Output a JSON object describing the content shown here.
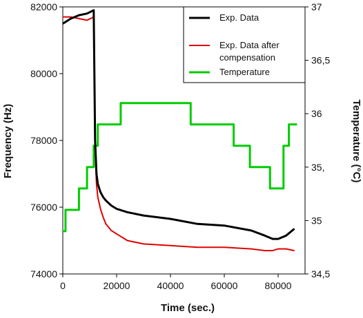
{
  "chart_data": {
    "type": "line",
    "xlabel": "Time (sec.)",
    "ylabel": "Frequency (Hz)",
    "y2label": "Temperature (°C)",
    "xlim": [
      0,
      90000
    ],
    "ylim": [
      74000,
      82000
    ],
    "y2lim": [
      34.5,
      37
    ],
    "x_ticks": [
      "0",
      "20000",
      "40000",
      "60000",
      "80000"
    ],
    "y_ticks": [
      "74000",
      "76000",
      "78000",
      "80000",
      "82000"
    ],
    "y2_ticks": [
      "34,5",
      "35",
      "35,",
      "36",
      "36,5",
      "37"
    ],
    "grid": false,
    "legend_position": "top-right",
    "series": [
      {
        "name": "Exp. Data",
        "axis": "left",
        "color": "#000000",
        "x": [
          0,
          3000,
          6000,
          9000,
          11500,
          12000,
          12500,
          13000,
          14000,
          15000,
          16000,
          18000,
          20000,
          24000,
          30000,
          40000,
          50000,
          60000,
          70000,
          75000,
          78000,
          80000,
          83000,
          86000
        ],
        "y": [
          81500,
          81650,
          81750,
          81800,
          81900,
          78000,
          77000,
          76700,
          76450,
          76300,
          76200,
          76050,
          75950,
          75850,
          75750,
          75650,
          75500,
          75450,
          75300,
          75150,
          75050,
          75050,
          75150,
          75350
        ]
      },
      {
        "name": "Exp. Data after compensation",
        "axis": "left",
        "color": "#e00000",
        "x": [
          0,
          3000,
          6000,
          9000,
          11500,
          12000,
          12500,
          13000,
          14000,
          15000,
          16000,
          18000,
          20000,
          24000,
          30000,
          40000,
          50000,
          60000,
          70000,
          75000,
          78000,
          80000,
          83000,
          86000
        ],
        "y": [
          81700,
          81700,
          81650,
          81600,
          81700,
          77800,
          76700,
          76300,
          75950,
          75700,
          75500,
          75300,
          75200,
          75000,
          74900,
          74850,
          74800,
          74800,
          74750,
          74700,
          74700,
          74750,
          74750,
          74700
        ]
      },
      {
        "name": "Temperature",
        "axis": "right",
        "color": "#00cc00",
        "x": [
          0,
          1000,
          1000,
          6000,
          6000,
          9000,
          9000,
          11500,
          11500,
          13000,
          13000,
          14500,
          14500,
          21500,
          21500,
          23500,
          23500,
          47500,
          47500,
          49500,
          49500,
          55500,
          55500,
          63500,
          63500,
          66000,
          66000,
          69500,
          69500,
          72500,
          72500,
          77000,
          77000,
          82000,
          82000,
          84000,
          84000,
          87000
        ],
        "y": [
          34.9,
          34.9,
          35.1,
          35.1,
          35.3,
          35.3,
          35.5,
          35.5,
          35.7,
          35.7,
          35.9,
          35.9,
          35.9,
          35.9,
          36.1,
          36.1,
          36.1,
          36.1,
          35.9,
          35.9,
          35.9,
          35.9,
          35.9,
          35.9,
          35.7,
          35.7,
          35.7,
          35.7,
          35.5,
          35.5,
          35.5,
          35.5,
          35.3,
          35.3,
          35.7,
          35.7,
          35.9,
          35.9
        ]
      }
    ]
  }
}
